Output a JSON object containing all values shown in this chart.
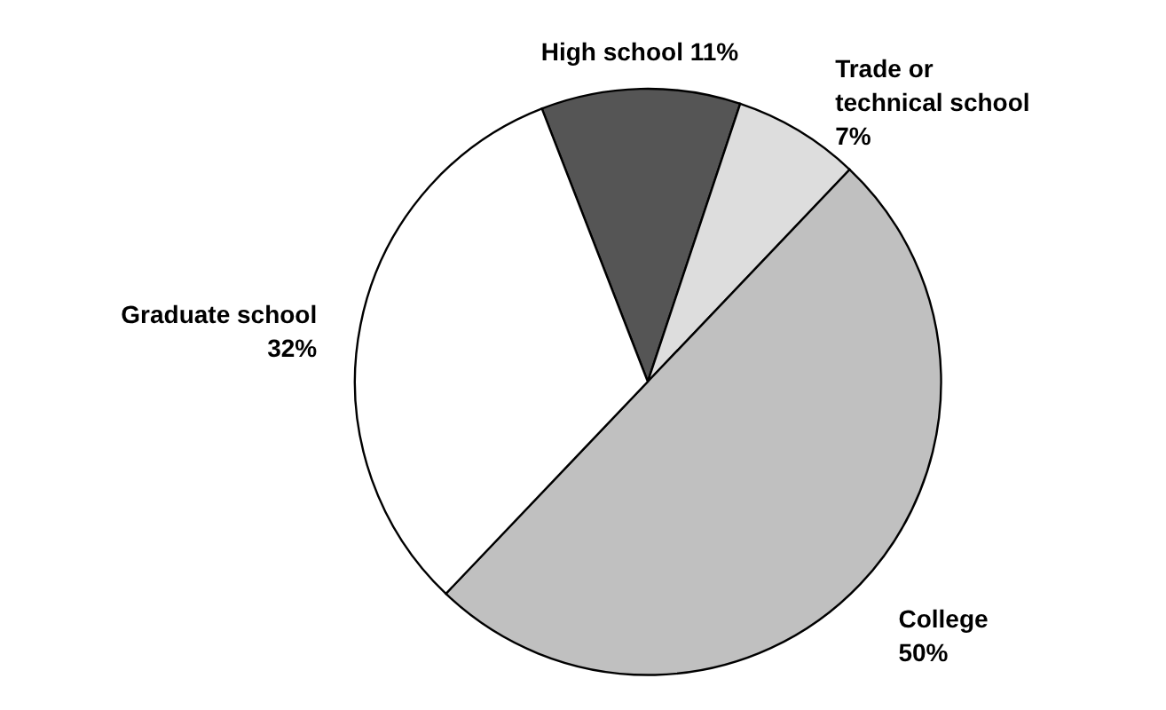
{
  "chart_data": {
    "type": "pie",
    "categories": [
      "High school",
      "Trade or technical school",
      "College",
      "Graduate school"
    ],
    "values": [
      11,
      7,
      50,
      32
    ],
    "value_labels": [
      "11%",
      "7%",
      "50%",
      "32%"
    ],
    "colors": [
      "#555555",
      "#dddddd",
      "#c0c0c0",
      "#ffffff"
    ]
  }
}
